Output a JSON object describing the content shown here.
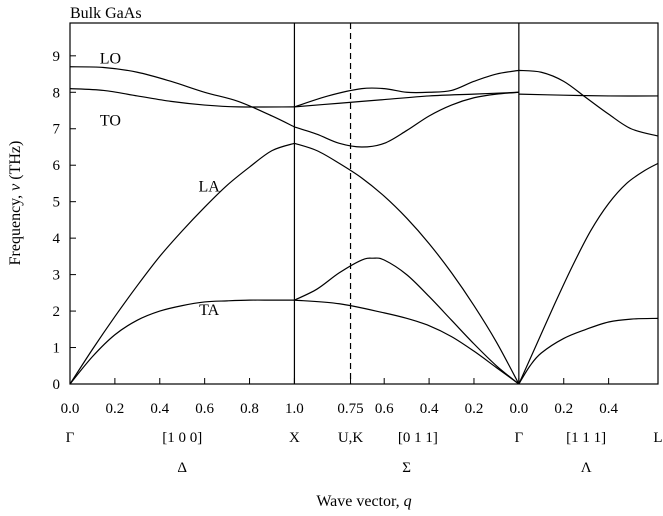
{
  "chart_data": {
    "type": "line",
    "title": "Bulk GaAs",
    "ylabel_main": "Frequency, ",
    "ylabel_symbol": "ν",
    "ylabel_unit": " (THz)",
    "xlabel_main": "Wave vector, ",
    "xlabel_symbol": "q",
    "ylim": [
      0,
      9.9
    ],
    "y_ticks": [
      "0",
      "1",
      "2",
      "3",
      "4",
      "5",
      "6",
      "7",
      "8",
      "9"
    ],
    "grid": false,
    "branch_labels": [
      "LO",
      "TO",
      "LA",
      "TA"
    ],
    "separators_at_x": [
      1.0,
      2.0
    ],
    "dashed_line_at_x": 1.25,
    "x_ticks": [
      {
        "x": 0.0,
        "label": "0.0"
      },
      {
        "x": 0.2,
        "label": "0.2"
      },
      {
        "x": 0.4,
        "label": "0.4"
      },
      {
        "x": 0.6,
        "label": "0.6"
      },
      {
        "x": 0.8,
        "label": "0.8"
      },
      {
        "x": 1.0,
        "label": "1.0"
      },
      {
        "x": 1.25,
        "label": "0.75"
      },
      {
        "x": 1.4,
        "label": "0.6"
      },
      {
        "x": 1.6,
        "label": "0.4"
      },
      {
        "x": 1.8,
        "label": "0.2"
      },
      {
        "x": 2.0,
        "label": "0.0"
      },
      {
        "x": 2.2,
        "label": "0.2"
      },
      {
        "x": 2.4,
        "label": "0.4"
      }
    ],
    "point_labels": [
      {
        "x": 0.0,
        "label": "Γ"
      },
      {
        "x": 0.5,
        "label": "[1 0 0]"
      },
      {
        "x": 1.0,
        "label": "X"
      },
      {
        "x": 1.25,
        "label": "U,K"
      },
      {
        "x": 1.55,
        "label": "[0 1 1]"
      },
      {
        "x": 2.0,
        "label": "Γ"
      },
      {
        "x": 2.3,
        "label": "[1 1 1]"
      },
      {
        "x": 2.62,
        "label": "L"
      }
    ],
    "direction_labels": [
      {
        "x": 0.5,
        "label": "Δ"
      },
      {
        "x": 1.5,
        "label": "Σ"
      },
      {
        "x": 2.3,
        "label": "Λ"
      }
    ],
    "series": [
      {
        "x": [
          0.0,
          0.15,
          0.3,
          0.45,
          0.6,
          0.75,
          0.9,
          1.0
        ],
        "y": [
          8.7,
          8.68,
          8.55,
          8.3,
          8.0,
          7.75,
          7.35,
          7.05
        ]
      },
      {
        "x": [
          1.0,
          1.1,
          1.2,
          1.3,
          1.4,
          1.5,
          1.6,
          1.7,
          1.8,
          1.9,
          2.0
        ],
        "y": [
          7.05,
          6.85,
          6.6,
          6.5,
          6.6,
          6.95,
          7.35,
          7.65,
          7.85,
          7.95,
          8.0
        ]
      },
      {
        "x": [
          2.0,
          2.1,
          2.2,
          2.3,
          2.4,
          2.5,
          2.62
        ],
        "y": [
          8.6,
          8.55,
          8.3,
          7.85,
          7.4,
          7.0,
          6.8
        ]
      },
      {
        "x": [
          0.0,
          0.15,
          0.3,
          0.45,
          0.6,
          0.75,
          1.0
        ],
        "y": [
          8.1,
          8.05,
          7.9,
          7.75,
          7.65,
          7.6,
          7.6
        ]
      },
      {
        "x": [
          1.0,
          1.15,
          1.3,
          1.4,
          1.5,
          1.6,
          1.7,
          1.8,
          1.9,
          2.0
        ],
        "y": [
          7.6,
          7.9,
          8.1,
          8.1,
          8.0,
          8.0,
          8.05,
          8.3,
          8.5,
          8.6
        ]
      },
      {
        "x": [
          1.0,
          1.2,
          1.4,
          1.6,
          1.8,
          2.0
        ],
        "y": [
          7.6,
          7.7,
          7.8,
          7.9,
          7.95,
          8.0
        ]
      },
      {
        "x": [
          2.0,
          2.2,
          2.4,
          2.62
        ],
        "y": [
          7.95,
          7.92,
          7.9,
          7.9
        ]
      },
      {
        "x": [
          0.0,
          0.1,
          0.2,
          0.3,
          0.4,
          0.5,
          0.6,
          0.7,
          0.8,
          0.9,
          1.0
        ],
        "y": [
          0.0,
          0.95,
          1.85,
          2.7,
          3.5,
          4.2,
          4.85,
          5.45,
          5.95,
          6.4,
          6.6
        ]
      },
      {
        "x": [
          1.0,
          1.1,
          1.2,
          1.3,
          1.4,
          1.5,
          1.6,
          1.7,
          1.8,
          1.9,
          2.0
        ],
        "y": [
          6.6,
          6.4,
          6.05,
          5.65,
          5.15,
          4.55,
          3.85,
          3.05,
          2.15,
          1.15,
          0.0
        ]
      },
      {
        "x": [
          2.0,
          2.08,
          2.16,
          2.24,
          2.32,
          2.4,
          2.48,
          2.56,
          2.62
        ],
        "y": [
          0.0,
          1.1,
          2.2,
          3.25,
          4.2,
          4.95,
          5.5,
          5.85,
          6.05
        ]
      },
      {
        "x": [
          0.0,
          0.1,
          0.2,
          0.3,
          0.4,
          0.5,
          0.6,
          0.7,
          0.8,
          0.9,
          1.0
        ],
        "y": [
          0.0,
          0.75,
          1.35,
          1.75,
          2.0,
          2.15,
          2.25,
          2.28,
          2.3,
          2.3,
          2.3
        ]
      },
      {
        "x": [
          1.0,
          1.1,
          1.2,
          1.3,
          1.35,
          1.4,
          1.5,
          1.6,
          1.7,
          1.8,
          1.9,
          2.0
        ],
        "y": [
          2.3,
          2.6,
          3.05,
          3.4,
          3.45,
          3.4,
          3.0,
          2.4,
          1.75,
          1.1,
          0.5,
          0.0
        ]
      },
      {
        "x": [
          1.0,
          1.2,
          1.4,
          1.5,
          1.6,
          1.7,
          1.8,
          1.9,
          2.0
        ],
        "y": [
          2.3,
          2.2,
          1.95,
          1.8,
          1.6,
          1.3,
          0.9,
          0.45,
          0.0
        ]
      },
      {
        "x": [
          2.0,
          2.05,
          2.1,
          2.2,
          2.3,
          2.4,
          2.5,
          2.62
        ],
        "y": [
          0.0,
          0.5,
          0.85,
          1.25,
          1.5,
          1.7,
          1.78,
          1.8
        ]
      }
    ]
  }
}
